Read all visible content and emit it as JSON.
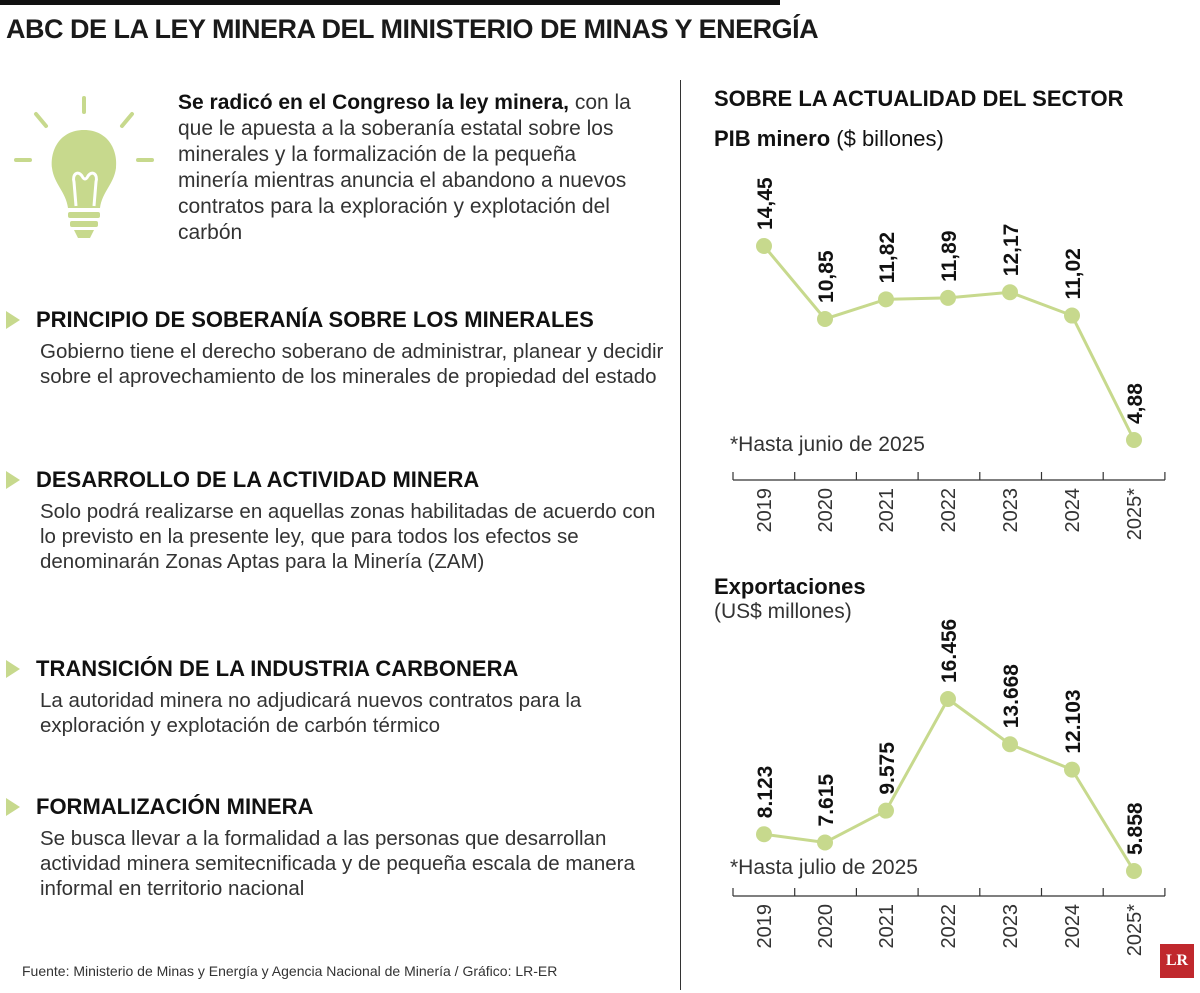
{
  "header": {
    "title": "ABC DE LA LEY MINERA DEL MINISTERIO DE MINAS Y ENERGÍA"
  },
  "intro": {
    "bold": "Se radicó en el Congreso la ley minera,",
    "text": "con la que le apuesta a la soberanía estatal sobre los minerales y la formalización de la pequeña minería mientras anuncia el abandono a nuevos contratos para la exploración y explotación del carbón"
  },
  "sections": [
    {
      "title": "PRINCIPIO DE SOBERANÍA SOBRE LOS MINERALES",
      "body": "Gobierno tiene el derecho soberano de administrar, planear y decidir sobre el aprovechamiento de los minerales de propiedad del estado"
    },
    {
      "title": "DESARROLLO DE LA ACTIVIDAD MINERA",
      "body": "Solo podrá realizarse en aquellas zonas habilitadas de acuerdo con lo previsto en la presente ley, que para todos los efectos se denominarán Zonas Aptas para la Minería (ZAM)"
    },
    {
      "title": "TRANSICIÓN DE LA INDUSTRIA CARBONERA",
      "body": "La autoridad minera no adjudicará nuevos contratos para la exploración y explotación de carbón térmico"
    },
    {
      "title": "FORMALIZACIÓN MINERA",
      "body": "Se busca llevar a la formalidad a las personas que desarrollan actividad minera semitecnificada y de pequeña escala de manera informal en territorio nacional"
    }
  ],
  "source": "Fuente: Ministerio de Minas y Energía y Agencia Nacional de Minería / Gráfico: LR-ER",
  "right_title": "SOBRE LA ACTUALIDAD DEL SECTOR",
  "logo": "LR",
  "colors": {
    "accent": "#c7d98d",
    "line": "#c7d98d",
    "text": "#1a1a1a"
  },
  "icons": {
    "bulb": "lightbulb-icon",
    "bullet": "triangle-bullet-icon"
  },
  "chart_data": [
    {
      "type": "line",
      "title_bold": "PIB minero",
      "title_unit": "($ billones)",
      "note": "*Hasta junio de 2025",
      "categories": [
        "2019",
        "2020",
        "2021",
        "2022",
        "2023",
        "2024",
        "2025*"
      ],
      "values": [
        14.45,
        10.85,
        11.82,
        11.89,
        12.17,
        11.02,
        4.88
      ],
      "labels": [
        "14,45",
        "10,85",
        "11,82",
        "11,89",
        "12,17",
        "11,02",
        "4,88"
      ],
      "ylim": [
        4.88,
        14.45
      ],
      "grid": false
    },
    {
      "type": "line",
      "title_bold": "Exportaciones",
      "title_unit": "(US$ millones)",
      "note": "*Hasta julio de 2025",
      "categories": [
        "2019",
        "2020",
        "2021",
        "2022",
        "2023",
        "2024",
        "2025*"
      ],
      "values": [
        8123,
        7615,
        9575,
        16456,
        13668,
        12103,
        5858
      ],
      "labels": [
        "8.123",
        "7.615",
        "9.575",
        "16.456",
        "13.668",
        "12.103",
        "5.858"
      ],
      "ylim": [
        5858,
        16456
      ],
      "grid": false
    }
  ]
}
